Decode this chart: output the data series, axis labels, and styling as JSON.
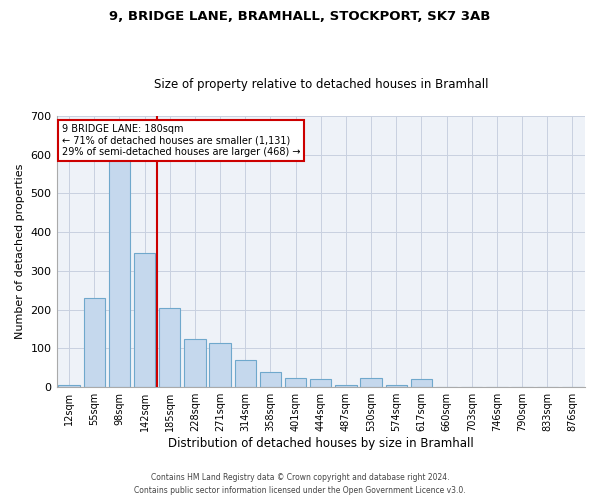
{
  "title": "9, BRIDGE LANE, BRAMHALL, STOCKPORT, SK7 3AB",
  "subtitle": "Size of property relative to detached houses in Bramhall",
  "xlabel": "Distribution of detached houses by size in Bramhall",
  "ylabel": "Number of detached properties",
  "categories": [
    "12sqm",
    "55sqm",
    "98sqm",
    "142sqm",
    "185sqm",
    "228sqm",
    "271sqm",
    "314sqm",
    "358sqm",
    "401sqm",
    "444sqm",
    "487sqm",
    "530sqm",
    "574sqm",
    "617sqm",
    "660sqm",
    "703sqm",
    "746sqm",
    "790sqm",
    "833sqm",
    "876sqm"
  ],
  "values": [
    5,
    230,
    590,
    345,
    205,
    125,
    115,
    70,
    40,
    25,
    20,
    5,
    25,
    5,
    20,
    0,
    0,
    0,
    0,
    0,
    0
  ],
  "bar_color": "#c5d8ed",
  "bar_edge_color": "#6fa8cc",
  "red_line_x": 4.0,
  "annotation_line1": "9 BRIDGE LANE: 180sqm",
  "annotation_line2": "← 71% of detached houses are smaller (1,131)",
  "annotation_line3": "29% of semi-detached houses are larger (468) →",
  "annotation_box_color": "#ffffff",
  "annotation_box_edge": "#cc0000",
  "red_line_color": "#cc0000",
  "grid_color": "#c8d0e0",
  "background_color": "#eef2f8",
  "ylim": [
    0,
    700
  ],
  "yticks": [
    0,
    100,
    200,
    300,
    400,
    500,
    600,
    700
  ],
  "footer_line1": "Contains HM Land Registry data © Crown copyright and database right 2024.",
  "footer_line2": "Contains public sector information licensed under the Open Government Licence v3.0."
}
